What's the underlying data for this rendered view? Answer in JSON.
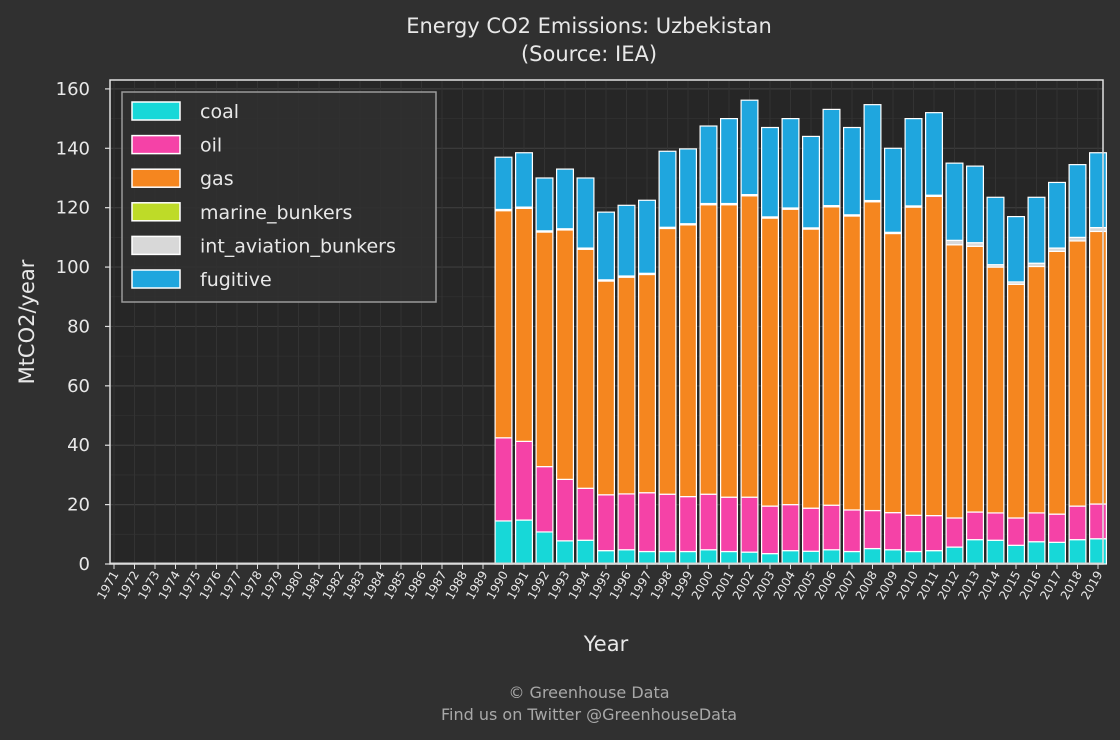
{
  "chart_data": {
    "type": "bar",
    "stacked": true,
    "title": "Energy CO2 Emissions: Uzbekistan",
    "subtitle": "(Source: IEA)",
    "xlabel": "Year",
    "ylabel": "MtCO2/year",
    "ylim": [
      0,
      163
    ],
    "yticks": [
      0,
      20,
      40,
      60,
      80,
      100,
      120,
      140,
      160
    ],
    "grid": true,
    "legend_position": "top-left",
    "categories": [
      "1971",
      "1972",
      "1973",
      "1974",
      "1975",
      "1976",
      "1977",
      "1978",
      "1979",
      "1980",
      "1981",
      "1982",
      "1983",
      "1984",
      "1985",
      "1986",
      "1987",
      "1988",
      "1989",
      "1990",
      "1991",
      "1992",
      "1993",
      "1994",
      "1995",
      "1996",
      "1997",
      "1998",
      "1999",
      "2000",
      "2001",
      "2002",
      "2003",
      "2004",
      "2005",
      "2006",
      "2007",
      "2008",
      "2009",
      "2010",
      "2011",
      "2012",
      "2013",
      "2014",
      "2015",
      "2016",
      "2017",
      "2018",
      "2019"
    ],
    "series": [
      {
        "name": "coal",
        "color": "#17d8d8",
        "values": [
          0,
          0,
          0,
          0,
          0,
          0,
          0,
          0,
          0,
          0,
          0,
          0,
          0,
          0,
          0,
          0,
          0,
          0,
          0,
          14.5,
          14.8,
          10.8,
          7.8,
          8.0,
          4.5,
          4.8,
          4.2,
          4.2,
          4.2,
          4.8,
          4.2,
          4.0,
          3.5,
          4.5,
          4.3,
          4.8,
          4.2,
          5.2,
          4.8,
          4.2,
          4.5,
          5.7,
          8.2,
          8.0,
          6.3,
          7.5,
          7.3,
          8.2,
          8.5
        ]
      },
      {
        "name": "oil",
        "color": "#f542a7",
        "values": [
          0,
          0,
          0,
          0,
          0,
          0,
          0,
          0,
          0,
          0,
          0,
          0,
          0,
          0,
          0,
          0,
          0,
          0,
          0,
          28.0,
          26.5,
          22.0,
          20.7,
          17.5,
          18.8,
          18.8,
          19.8,
          19.3,
          18.5,
          18.7,
          18.3,
          18.5,
          16.0,
          15.5,
          14.5,
          15.0,
          14.0,
          12.8,
          12.5,
          12.2,
          11.8,
          9.8,
          9.3,
          9.2,
          9.2,
          9.7,
          9.5,
          11.3,
          11.7
        ]
      },
      {
        "name": "gas",
        "color": "#f5861f",
        "values": [
          0,
          0,
          0,
          0,
          0,
          0,
          0,
          0,
          0,
          0,
          0,
          0,
          0,
          0,
          0,
          0,
          0,
          0,
          0,
          76.5,
          78.5,
          79.0,
          84.0,
          80.5,
          72.0,
          73.0,
          73.5,
          89.5,
          91.5,
          97.5,
          98.5,
          101.5,
          97.0,
          99.5,
          94.0,
          100.5,
          99.0,
          104.0,
          94.0,
          103.8,
          107.5,
          92.0,
          89.5,
          82.8,
          78.7,
          83.0,
          88.5,
          89.3,
          91.8
        ]
      },
      {
        "name": "marine_bunkers",
        "color": "#bedb28",
        "values": [
          0,
          0,
          0,
          0,
          0,
          0,
          0,
          0,
          0,
          0,
          0,
          0,
          0,
          0,
          0,
          0,
          0,
          0,
          0,
          0,
          0,
          0,
          0,
          0,
          0,
          0,
          0,
          0,
          0,
          0,
          0,
          0,
          0,
          0,
          0,
          0,
          0,
          0,
          0,
          0,
          0,
          0,
          0,
          0,
          0,
          0,
          0,
          0,
          0
        ]
      },
      {
        "name": "int_aviation_bunkers",
        "color": "#d8d8d8",
        "values": [
          0,
          0,
          0,
          0,
          0,
          0,
          0,
          0,
          0,
          0,
          0,
          0,
          0,
          0,
          0,
          0,
          0,
          0,
          0,
          0.4,
          0.4,
          0.4,
          0.4,
          0.4,
          0.4,
          0.4,
          0.4,
          0.4,
          0.4,
          0.4,
          0.4,
          0.4,
          0.4,
          0.4,
          0.4,
          0.4,
          0.4,
          0.4,
          0.4,
          0.4,
          0.4,
          1.5,
          1.2,
          0.8,
          0.8,
          1.1,
          1.1,
          1.2,
          1.3
        ]
      },
      {
        "name": "fugitive",
        "color": "#1fa6de",
        "values": [
          0,
          0,
          0,
          0,
          0,
          0,
          0,
          0,
          0,
          0,
          0,
          0,
          0,
          0,
          0,
          0,
          0,
          0,
          0,
          17.6,
          18.3,
          17.8,
          20.1,
          23.6,
          22.8,
          23.8,
          24.6,
          25.6,
          25.2,
          26.1,
          28.6,
          31.8,
          30.1,
          30.1,
          30.8,
          32.4,
          29.4,
          32.3,
          28.3,
          29.4,
          27.8,
          26.0,
          25.8,
          22.7,
          22.0,
          22.2,
          22.1,
          24.5,
          25.2
        ]
      }
    ]
  },
  "footer": {
    "line1": "© Greenhouse Data",
    "line2": "Find us on Twitter @GreenhouseData"
  }
}
